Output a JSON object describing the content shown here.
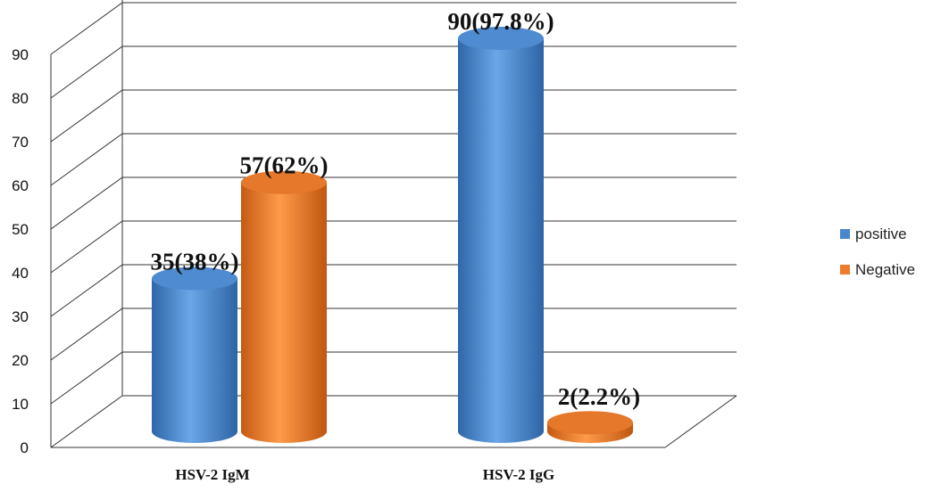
{
  "chart_data": {
    "type": "bar",
    "categories": [
      "HSV-2 IgM",
      "HSV-2 IgG"
    ],
    "series": [
      {
        "name": "positive",
        "values": [
          35,
          90
        ],
        "labels": [
          "35(38%)",
          "90(97.8%)"
        ]
      },
      {
        "name": "Negative",
        "values": [
          57,
          2
        ],
        "labels": [
          "57(62%)",
          "2(2.2%)"
        ]
      }
    ],
    "title": "",
    "xlabel": "",
    "ylabel": "",
    "ylim": [
      0,
      90
    ],
    "yticks": [
      "0",
      "10",
      "20",
      "30",
      "40",
      "50",
      "60",
      "70",
      "80",
      "90"
    ],
    "grid": true,
    "legend_position": "right",
    "colors": {
      "positive": "#4A86CC",
      "Negative": "#EE7C2E"
    }
  }
}
